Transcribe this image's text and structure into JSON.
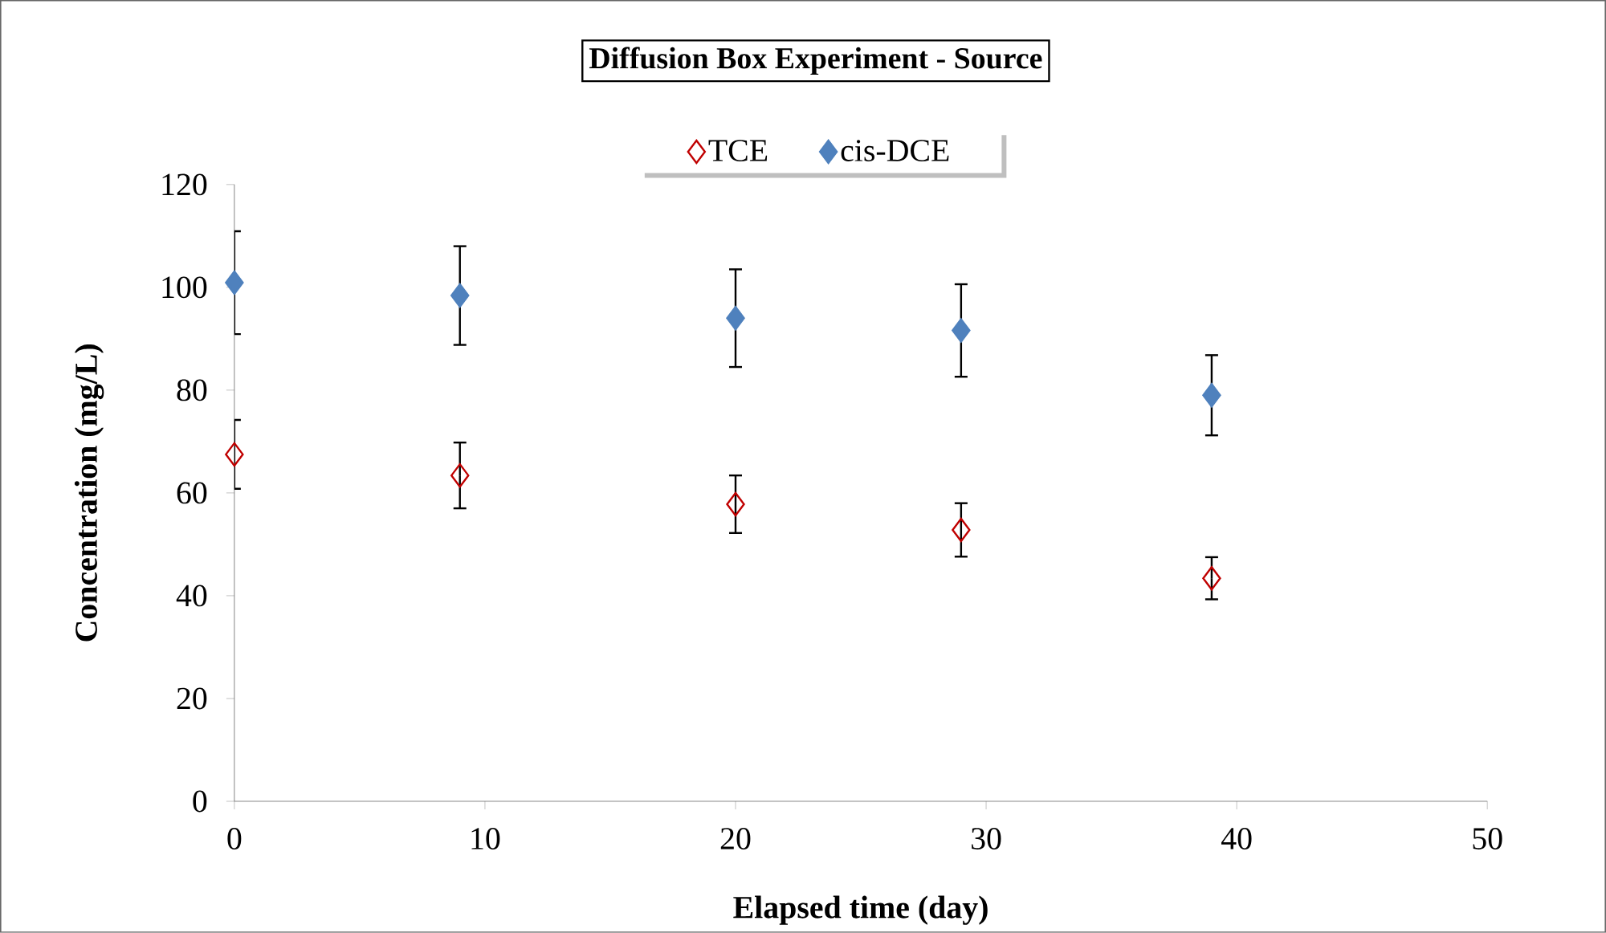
{
  "chart_data": {
    "type": "scatter",
    "title": "Diffusion Box Experiment - Source",
    "xlabel": "Elapsed time (day)",
    "ylabel": "Concentration (mg/L)",
    "x": [
      0,
      9,
      20,
      29,
      39
    ],
    "series": [
      {
        "name": "TCE",
        "color": "#c00000",
        "marker": "diamond open",
        "values": [
          67.5,
          63.4,
          57.8,
          52.8,
          43.4
        ],
        "errors": [
          6.7,
          6.4,
          5.6,
          5.2,
          4.1
        ]
      },
      {
        "name": "cis-DCE",
        "color": "#4f81bd",
        "marker": "diamond",
        "values": [
          100.9,
          98.4,
          94.0,
          91.6,
          79.0
        ],
        "errors": [
          10,
          9.6,
          9.5,
          9.0,
          7.8
        ]
      }
    ],
    "xlim": [
      0,
      50
    ],
    "ylim": [
      0,
      120
    ],
    "xticks": [
      0,
      10,
      20,
      30,
      40,
      50
    ],
    "yticks": [
      0,
      20,
      40,
      60,
      80,
      100,
      120
    ],
    "grid": false,
    "legend": "top"
  }
}
